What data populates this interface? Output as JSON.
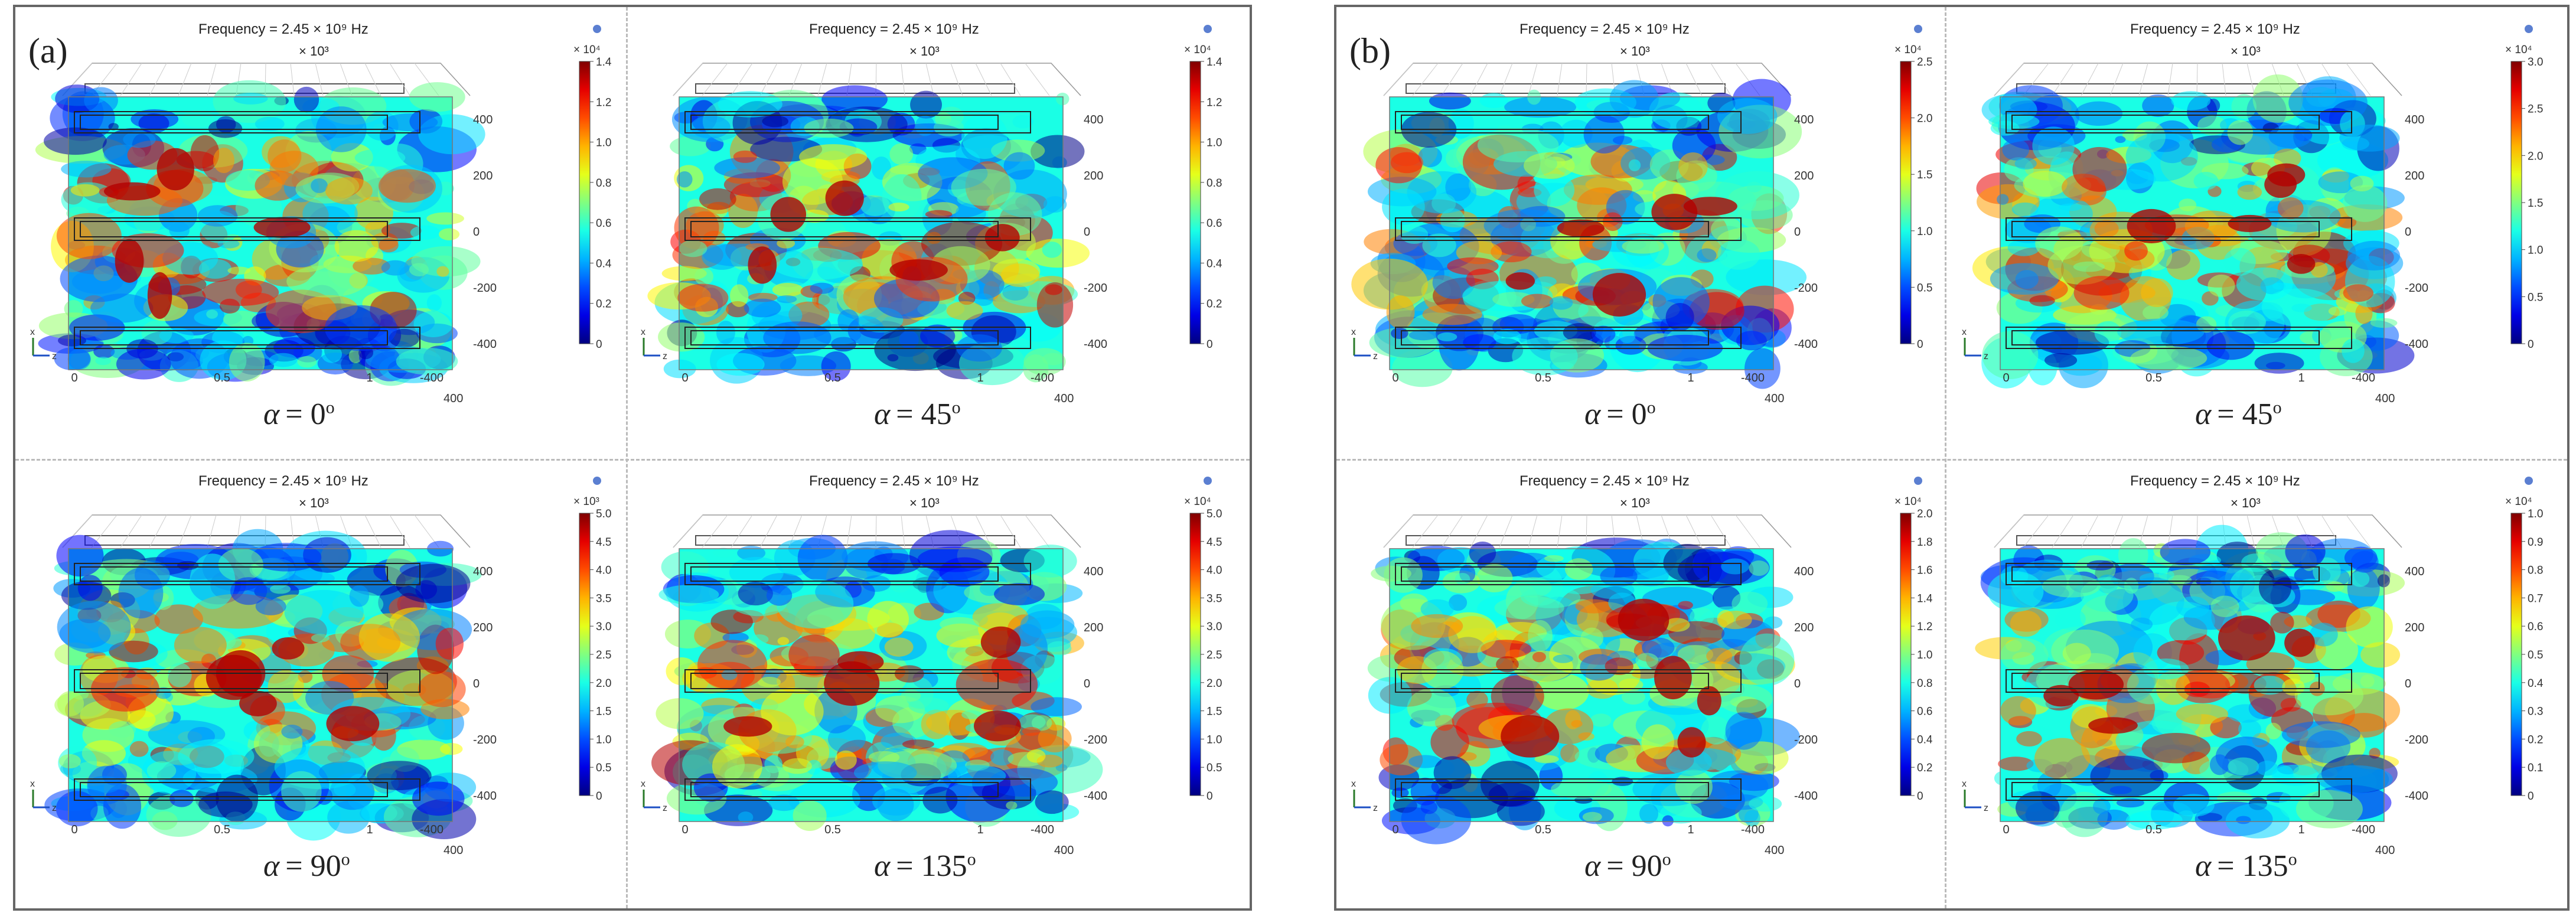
{
  "figures": [
    {
      "label": "(a)",
      "panels": [
        {
          "frequency": "Frequency = 2.45 × 10⁹ Hz",
          "x_multiplier": "× 10³",
          "angle_symbol": "α",
          "angle_value": "= 0",
          "angle_unit": "o",
          "colorbar_exponent": "× 10⁴",
          "colorbar_ticks": [
            "1.4",
            "1.2",
            "1.0",
            "0.8",
            "0.6",
            "0.4",
            "0.2",
            "0"
          ],
          "x_ticks": [
            "0",
            "0.5",
            "1"
          ],
          "z_ticks": [
            "400",
            "200",
            "0",
            "-200",
            "-400"
          ],
          "z_end": "400",
          "z_end_neg": "-400",
          "seed": 11
        },
        {
          "frequency": "Frequency = 2.45 × 10⁹ Hz",
          "x_multiplier": "× 10³",
          "angle_symbol": "α",
          "angle_value": "= 45",
          "angle_unit": "o",
          "colorbar_exponent": "× 10⁴",
          "colorbar_ticks": [
            "1.4",
            "1.2",
            "1.0",
            "0.8",
            "0.6",
            "0.4",
            "0.2",
            "0"
          ],
          "x_ticks": [
            "0",
            "0.5",
            "1"
          ],
          "z_ticks": [
            "400",
            "200",
            "0",
            "-200",
            "-400"
          ],
          "z_end": "400",
          "z_end_neg": "-400",
          "seed": 23
        },
        {
          "frequency": "Frequency = 2.45 × 10⁹ Hz",
          "x_multiplier": "× 10³",
          "angle_symbol": "α",
          "angle_value": "= 90",
          "angle_unit": "o",
          "colorbar_exponent": "× 10³",
          "colorbar_ticks": [
            "5.0",
            "4.5",
            "4.0",
            "3.5",
            "3.0",
            "2.5",
            "2.0",
            "1.5",
            "1.0",
            "0.5",
            "0"
          ],
          "x_ticks": [
            "0",
            "0.5",
            "1"
          ],
          "z_ticks": [
            "400",
            "200",
            "0",
            "-200",
            "-400"
          ],
          "z_end": "400",
          "z_end_neg": "-400",
          "seed": 37
        },
        {
          "frequency": "Frequency = 2.45 × 10⁹ Hz",
          "x_multiplier": "× 10³",
          "angle_symbol": "α",
          "angle_value": "= 135",
          "angle_unit": "o",
          "colorbar_exponent": "× 10⁴",
          "colorbar_ticks": [
            "5.0",
            "4.5",
            "4.0",
            "3.5",
            "3.0",
            "2.5",
            "2.0",
            "1.5",
            "1.0",
            "0.5",
            "0"
          ],
          "x_ticks": [
            "0",
            "0.5",
            "1"
          ],
          "z_ticks": [
            "400",
            "200",
            "0",
            "-200",
            "-400"
          ],
          "z_end": "400",
          "z_end_neg": "-400",
          "seed": 41
        }
      ]
    },
    {
      "label": "(b)",
      "panels": [
        {
          "frequency": "Frequency = 2.45 × 10⁹ Hz",
          "x_multiplier": "× 10³",
          "angle_symbol": "α",
          "angle_value": "= 0",
          "angle_unit": "o",
          "colorbar_exponent": "× 10⁴",
          "colorbar_ticks": [
            "2.5",
            "2.0",
            "1.5",
            "1.0",
            "0.5",
            "0"
          ],
          "x_ticks": [
            "0",
            "0.5",
            "1"
          ],
          "z_ticks": [
            "400",
            "200",
            "0",
            "-200",
            "-400"
          ],
          "z_end": "400",
          "z_end_neg": "-400",
          "seed": 53
        },
        {
          "frequency": "Frequency = 2.45 × 10⁹ Hz",
          "x_multiplier": "× 10³",
          "angle_symbol": "α",
          "angle_value": "= 45",
          "angle_unit": "o",
          "colorbar_exponent": "× 10⁴",
          "colorbar_ticks": [
            "3.0",
            "2.5",
            "2.0",
            "1.5",
            "1.0",
            "0.5",
            "0"
          ],
          "x_ticks": [
            "0",
            "0.5",
            "1"
          ],
          "z_ticks": [
            "400",
            "200",
            "0",
            "-200",
            "-400"
          ],
          "z_end": "400",
          "z_end_neg": "-400",
          "seed": 67
        },
        {
          "frequency": "Frequency = 2.45 × 10⁹ Hz",
          "x_multiplier": "× 10³",
          "angle_symbol": "α",
          "angle_value": "= 90",
          "angle_unit": "o",
          "colorbar_exponent": "× 10⁴",
          "colorbar_ticks": [
            "2.0",
            "1.8",
            "1.6",
            "1.4",
            "1.2",
            "1.0",
            "0.8",
            "0.6",
            "0.4",
            "0.2",
            "0"
          ],
          "x_ticks": [
            "0",
            "0.5",
            "1"
          ],
          "z_ticks": [
            "400",
            "200",
            "0",
            "-200",
            "-400"
          ],
          "z_end": "400",
          "z_end_neg": "-400",
          "seed": 71
        },
        {
          "frequency": "Frequency = 2.45 × 10⁹ Hz",
          "x_multiplier": "× 10³",
          "angle_symbol": "α",
          "angle_value": "= 135",
          "angle_unit": "o",
          "colorbar_exponent": "× 10⁴",
          "colorbar_ticks": [
            "1.0",
            "0.9",
            "0.8",
            "0.7",
            "0.6",
            "0.5",
            "0.4",
            "0.3",
            "0.2",
            "0.1",
            "0"
          ],
          "x_ticks": [
            "0",
            "0.5",
            "1"
          ],
          "z_ticks": [
            "400",
            "200",
            "0",
            "-200",
            "-400"
          ],
          "z_end": "400",
          "z_end_neg": "-400",
          "seed": 83
        }
      ]
    }
  ],
  "axis_glyphs": {
    "up": "x",
    "right": "z"
  }
}
